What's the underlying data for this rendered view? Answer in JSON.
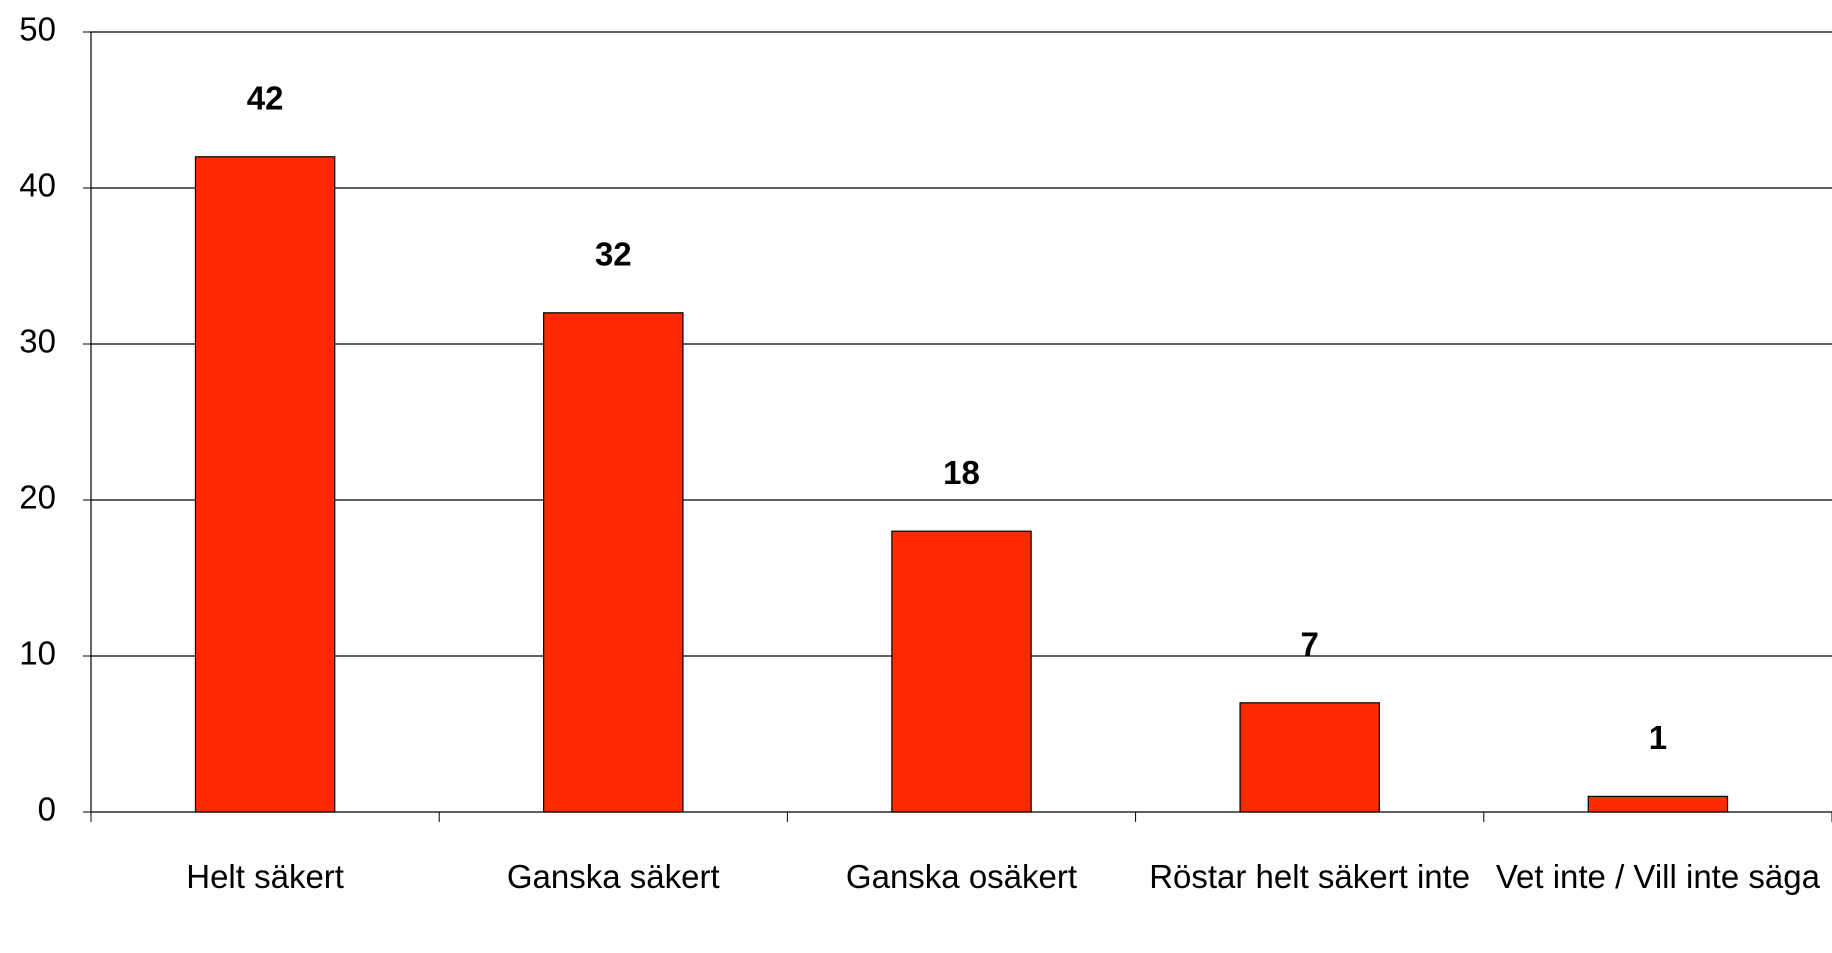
{
  "chart_data": {
    "type": "bar",
    "categories": [
      "Helt säkert",
      "Ganska säkert",
      "Ganska osäkert",
      "Röstar helt säkert inte",
      "Vet inte / Vill inte säga"
    ],
    "values": [
      42,
      32,
      18,
      7,
      1
    ],
    "color": "#ff2a00",
    "ylim": [
      0,
      50
    ],
    "yticks": [
      0,
      10,
      20,
      30,
      40,
      50
    ],
    "grid": true
  }
}
